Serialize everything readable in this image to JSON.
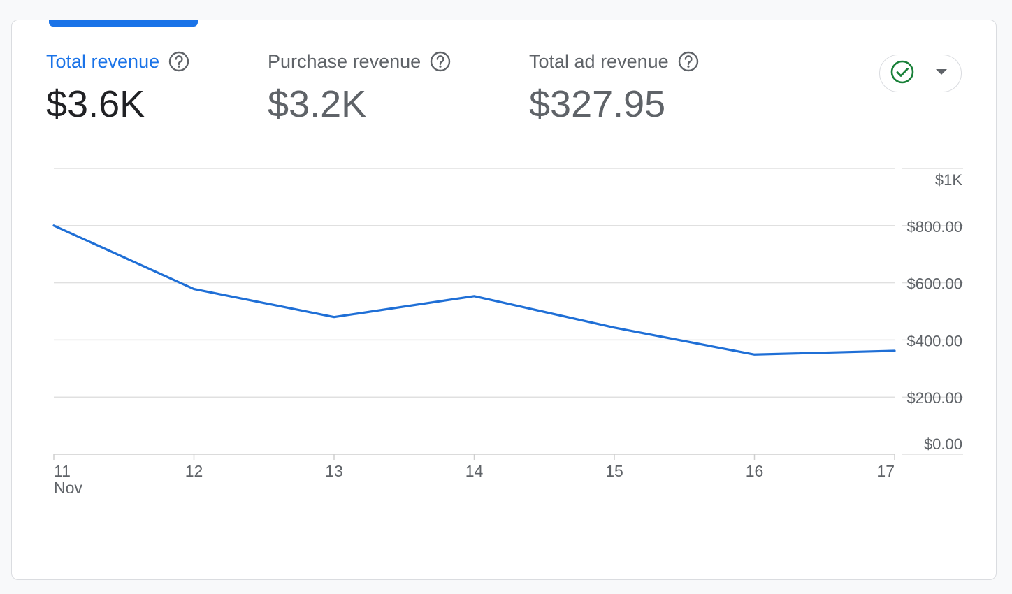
{
  "metrics": [
    {
      "label": "Total revenue",
      "value": "$3.6K",
      "active": true
    },
    {
      "label": "Purchase revenue",
      "value": "$3.2K",
      "active": false
    },
    {
      "label": "Total ad revenue",
      "value": "$327.95",
      "active": false
    }
  ],
  "colors": {
    "accent": "#1a73e8",
    "line": "#1f6fd6",
    "grid": "#e0e0e0",
    "check": "#188038"
  },
  "compare_button": {
    "status_icon": "check-circle-icon",
    "dropdown_icon": "arrow-drop-down-icon"
  },
  "chart_data": {
    "type": "line",
    "x": [
      "11",
      "12",
      "13",
      "14",
      "15",
      "16",
      "17"
    ],
    "x_sublabels": [
      "Nov",
      "",
      "",
      "",
      "",
      "",
      ""
    ],
    "series": [
      {
        "values": [
          800,
          578,
          480,
          553,
          443,
          349,
          362
        ],
        "color": "#1f6fd6"
      }
    ],
    "ylim": [
      0,
      1000
    ],
    "y_ticks": [
      1000,
      800,
      600,
      400,
      200,
      0
    ],
    "y_tick_labels": [
      "$1K",
      "$800.00",
      "$600.00",
      "$400.00",
      "$200.00",
      "$0.00"
    ],
    "grid": true,
    "legend": "none",
    "y_axis_position": "right"
  }
}
